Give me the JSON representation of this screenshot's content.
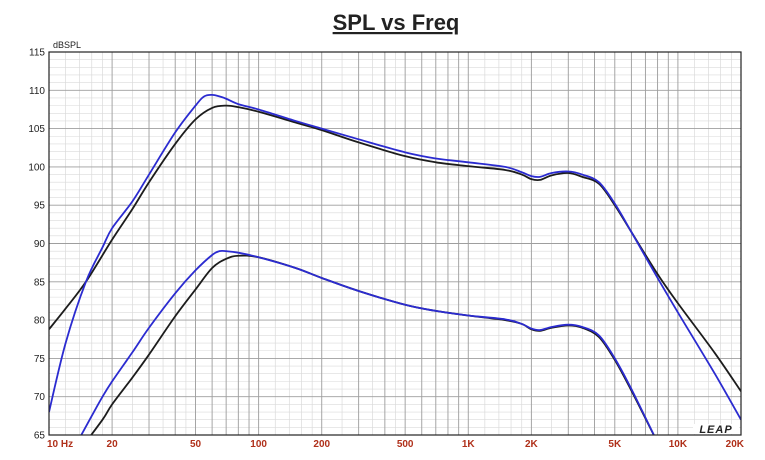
{
  "chart_data": {
    "type": "line",
    "title": "SPL vs Freq",
    "ylabel": "dBSPL",
    "xlabel": "",
    "x_scale": "log",
    "xlim": [
      10,
      20000
    ],
    "ylim": [
      65,
      115
    ],
    "grid": true,
    "logo": "LEAP",
    "yticks": [
      "65",
      "70",
      "75",
      "80",
      "85",
      "90",
      "95",
      "100",
      "105",
      "110",
      "115"
    ],
    "xticks": [
      {
        "value": 10,
        "label": "10  Hz"
      },
      {
        "value": 20,
        "label": "20"
      },
      {
        "value": 50,
        "label": "50"
      },
      {
        "value": 100,
        "label": "100"
      },
      {
        "value": 200,
        "label": "200"
      },
      {
        "value": 500,
        "label": "500"
      },
      {
        "value": 1000,
        "label": "1K"
      },
      {
        "value": 2000,
        "label": "2K"
      },
      {
        "value": 5000,
        "label": "5K"
      },
      {
        "value": 10000,
        "label": "10K"
      },
      {
        "value": 20000,
        "label": "20K"
      }
    ],
    "series": [
      {
        "color": "#1c1c1c",
        "points": [
          [
            10,
            78.8
          ],
          [
            12,
            81.5
          ],
          [
            15,
            85
          ],
          [
            20,
            90.5
          ],
          [
            25,
            94.5
          ],
          [
            30,
            98
          ],
          [
            40,
            103
          ],
          [
            50,
            106.2
          ],
          [
            60,
            107.7
          ],
          [
            70,
            108
          ],
          [
            80,
            107.8
          ],
          [
            100,
            107.2
          ],
          [
            150,
            105.8
          ],
          [
            200,
            104.8
          ],
          [
            300,
            103.2
          ],
          [
            500,
            101.4
          ],
          [
            700,
            100.6
          ],
          [
            1000,
            100.1
          ],
          [
            1500,
            99.6
          ],
          [
            1800,
            99
          ],
          [
            2000,
            98.4
          ],
          [
            2200,
            98.3
          ],
          [
            2500,
            98.9
          ],
          [
            3000,
            99.2
          ],
          [
            3500,
            98.7
          ],
          [
            4200,
            97.8
          ],
          [
            5000,
            95
          ],
          [
            6000,
            91.5
          ],
          [
            8000,
            86
          ],
          [
            10000,
            82.2
          ],
          [
            15000,
            75.7
          ],
          [
            20000,
            70.7
          ]
        ]
      },
      {
        "color": "#2b2bd0",
        "points": [
          [
            10,
            68
          ],
          [
            12,
            77
          ],
          [
            15,
            85
          ],
          [
            18,
            89.5
          ],
          [
            20,
            92
          ],
          [
            25,
            95.5
          ],
          [
            30,
            99
          ],
          [
            40,
            104.5
          ],
          [
            50,
            108
          ],
          [
            55,
            109.2
          ],
          [
            60,
            109.4
          ],
          [
            65,
            109.2
          ],
          [
            70,
            108.9
          ],
          [
            80,
            108.2
          ],
          [
            100,
            107.5
          ],
          [
            150,
            106
          ],
          [
            200,
            105
          ],
          [
            300,
            103.6
          ],
          [
            500,
            101.9
          ],
          [
            700,
            101.1
          ],
          [
            1000,
            100.6
          ],
          [
            1500,
            100
          ],
          [
            1800,
            99.3
          ],
          [
            2000,
            98.8
          ],
          [
            2200,
            98.7
          ],
          [
            2500,
            99.2
          ],
          [
            3000,
            99.4
          ],
          [
            3500,
            99
          ],
          [
            4200,
            98
          ],
          [
            5000,
            95.2
          ],
          [
            6000,
            91.5
          ],
          [
            8000,
            85.5
          ],
          [
            10000,
            81
          ],
          [
            15000,
            73
          ],
          [
            20000,
            67
          ]
        ]
      },
      {
        "color": "#1c1c1c",
        "points": [
          [
            14,
            63
          ],
          [
            18,
            67
          ],
          [
            20,
            69
          ],
          [
            25,
            72.5
          ],
          [
            30,
            75.5
          ],
          [
            40,
            80.5
          ],
          [
            50,
            84
          ],
          [
            60,
            86.8
          ],
          [
            70,
            88
          ],
          [
            80,
            88.4
          ],
          [
            100,
            88.2
          ],
          [
            150,
            86.8
          ],
          [
            200,
            85.5
          ],
          [
            300,
            83.8
          ],
          [
            500,
            82
          ],
          [
            700,
            81.2
          ],
          [
            1000,
            80.6
          ],
          [
            1500,
            80
          ],
          [
            1800,
            79.5
          ],
          [
            2000,
            78.8
          ],
          [
            2200,
            78.6
          ],
          [
            2500,
            79
          ],
          [
            3000,
            79.3
          ],
          [
            3500,
            79
          ],
          [
            4200,
            77.8
          ],
          [
            5000,
            74.8
          ],
          [
            6000,
            70.8
          ],
          [
            8000,
            64
          ]
        ]
      },
      {
        "color": "#2b2bd0",
        "points": [
          [
            13,
            63
          ],
          [
            16,
            67.5
          ],
          [
            18,
            70
          ],
          [
            20,
            72
          ],
          [
            25,
            75.8
          ],
          [
            30,
            79
          ],
          [
            40,
            83.5
          ],
          [
            50,
            86.5
          ],
          [
            60,
            88.5
          ],
          [
            65,
            89
          ],
          [
            70,
            89
          ],
          [
            80,
            88.8
          ],
          [
            100,
            88.2
          ],
          [
            150,
            86.8
          ],
          [
            200,
            85.5
          ],
          [
            300,
            83.8
          ],
          [
            500,
            82
          ],
          [
            700,
            81.2
          ],
          [
            1000,
            80.6
          ],
          [
            1500,
            80.1
          ],
          [
            1800,
            79.5
          ],
          [
            2000,
            78.9
          ],
          [
            2200,
            78.7
          ],
          [
            2500,
            79.1
          ],
          [
            3000,
            79.4
          ],
          [
            3500,
            79.1
          ],
          [
            4200,
            78
          ],
          [
            5000,
            75
          ],
          [
            6000,
            71
          ],
          [
            8000,
            64
          ]
        ]
      }
    ]
  }
}
